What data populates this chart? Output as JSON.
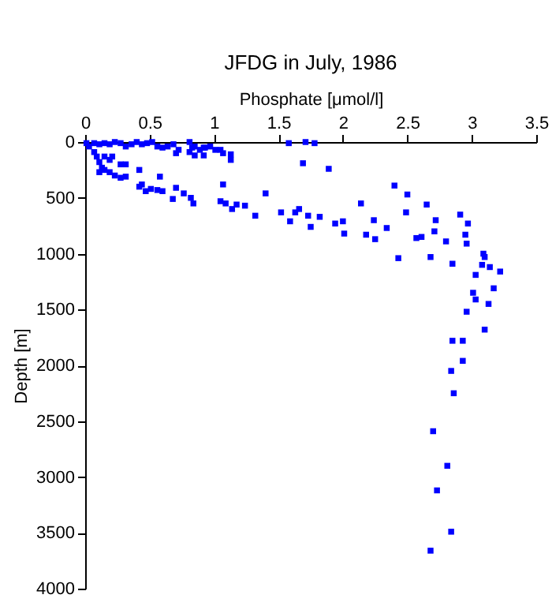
{
  "chart_data": {
    "type": "scatter",
    "title": "JFDG in July, 1986",
    "xlabel": "Phosphate [μmol/l]",
    "ylabel": "Depth [m]",
    "xlim": [
      0,
      3.5
    ],
    "xticks": [
      0,
      0.5,
      1,
      1.5,
      2,
      2.5,
      3,
      3.5
    ],
    "ylim": [
      4000,
      0
    ],
    "yticks": [
      0,
      500,
      1000,
      1500,
      2000,
      2500,
      3000,
      3500,
      4000
    ],
    "marker": "square",
    "grid": false,
    "series": [
      {
        "color": "#0000ff",
        "x": [
          0.01,
          0.03,
          0.07,
          0.11,
          0.15,
          0.19,
          0.23,
          0.275,
          0.315,
          0.36,
          0.4,
          0.44,
          0.48,
          0.52,
          0.56,
          0.6,
          0.64,
          0.685,
          0.725,
          0.81,
          0.83,
          0.85,
          0.89,
          0.92,
          0.93,
          0.97,
          1.01,
          1.05,
          1.07,
          1.13,
          1.13,
          0.705,
          0.81,
          0.92,
          0.85,
          0.07,
          0.09,
          0.11,
          0.13,
          0.11,
          0.15,
          0.19,
          0.21,
          0.23,
          0.275,
          0.315,
          0.275,
          0.315,
          0.42,
          0.42,
          0.44,
          0.47,
          0.51,
          0.56,
          0.58,
          0.6,
          0.68,
          0.705,
          0.765,
          0.82,
          0.84,
          1.05,
          1.07,
          1.09,
          1.14,
          1.175,
          1.24,
          1.32,
          1.4,
          1.52,
          1.59,
          1.63,
          1.66,
          1.69,
          1.71,
          1.58,
          1.73,
          1.75,
          0.15,
          0.19,
          1.78,
          1.89,
          2.4,
          2.5,
          2.14,
          2.65,
          2.49,
          2.72,
          2.91,
          2.97,
          1.82,
          1.94,
          2.0,
          2.01,
          2.18,
          2.24,
          2.25,
          2.34,
          2.57,
          2.61,
          2.71,
          2.8,
          2.95,
          2.96,
          2.43,
          2.68,
          2.85,
          3.09,
          3.1,
          3.08,
          3.14,
          3.22,
          3.03,
          3.01,
          3.17,
          3.13,
          3.03,
          2.96,
          3.1,
          2.85,
          2.93,
          2.93,
          2.84,
          2.86,
          2.7,
          2.81,
          2.73,
          2.84,
          2.68
        ],
        "values": [
          10,
          40,
          10,
          20,
          10,
          20,
          0,
          10,
          40,
          20,
          0,
          20,
          10,
          0,
          40,
          50,
          40,
          20,
          70,
          0,
          50,
          40,
          70,
          50,
          50,
          40,
          70,
          70,
          100,
          110,
          160,
          100,
          90,
          120,
          120,
          90,
          130,
          180,
          230,
          270,
          250,
          270,
          130,
          300,
          200,
          200,
          320,
          310,
          250,
          400,
          380,
          440,
          420,
          430,
          310,
          440,
          510,
          410,
          460,
          500,
          550,
          530,
          380,
          550,
          600,
          560,
          570,
          660,
          460,
          630,
          710,
          630,
          600,
          190,
          0,
          10,
          660,
          760,
          130,
          160,
          10,
          240,
          390,
          470,
          550,
          560,
          630,
          700,
          650,
          730,
          670,
          730,
          710,
          820,
          830,
          700,
          870,
          770,
          860,
          850,
          800,
          890,
          830,
          910,
          1040,
          1030,
          1090,
          1000,
          1030,
          1100,
          1120,
          1160,
          1190,
          1350,
          1310,
          1450,
          1410,
          1520,
          1680,
          1780,
          1780,
          1960,
          2050,
          2250,
          2590,
          2900,
          3120,
          3490,
          3660
        ]
      }
    ]
  }
}
